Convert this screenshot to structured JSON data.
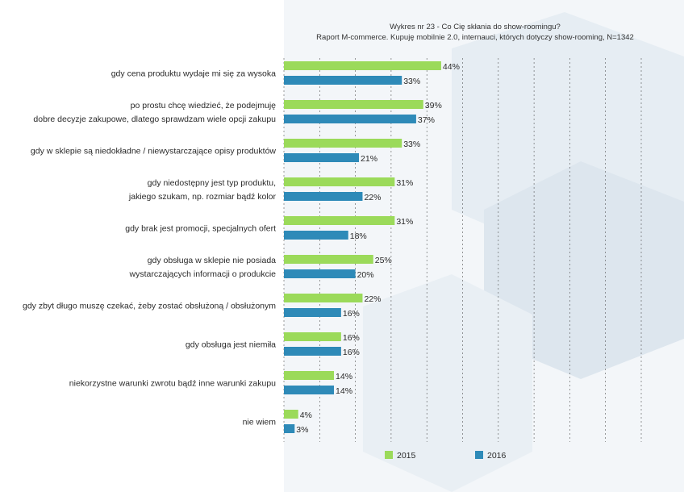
{
  "chart_data": {
    "type": "bar",
    "orientation": "horizontal",
    "title": "Wykres nr 23 - Co Cię skłania do show-roomingu?",
    "subtitle": "Raport M-commerce. Kupuję mobilnie 2.0, internauci, których dotyczy show-rooming, N=1342",
    "xlim": [
      0,
      100
    ],
    "grid": "vertical dashed",
    "legend_position": "bottom",
    "categories": [
      [
        "gdy cena produktu wydaje mi się za wysoka"
      ],
      [
        "po prostu chcę wiedzieć, że podejmuję",
        "dobre decyzje zakupowe, dlatego sprawdzam wiele opcji zakupu"
      ],
      [
        "gdy w sklepie są niedokładne / niewystarczające opisy produktów"
      ],
      [
        "gdy niedostępny jest typ produktu,",
        "jakiego szukam, np. rozmiar bądź kolor"
      ],
      [
        "gdy brak jest promocji, specjalnych ofert"
      ],
      [
        "gdy obsługa w sklepie nie posiada",
        "wystarczających informacji o produkcie"
      ],
      [
        "gdy zbyt długo muszę czekać, żeby zostać obsłużoną / obsłużonym"
      ],
      [
        "gdy obsługa jest niemiła"
      ],
      [
        "niekorzystne warunki zwrotu bądź inne warunki zakupu"
      ],
      [
        "nie wiem"
      ]
    ],
    "series": [
      {
        "name": "2015",
        "color": "#9BDA5A",
        "values": [
          44,
          39,
          33,
          31,
          31,
          25,
          22,
          16,
          14,
          4
        ]
      },
      {
        "name": "2016",
        "color": "#2E8AB8",
        "values": [
          33,
          37,
          21,
          22,
          18,
          20,
          16,
          16,
          14,
          3
        ]
      }
    ],
    "value_suffix": "%"
  }
}
